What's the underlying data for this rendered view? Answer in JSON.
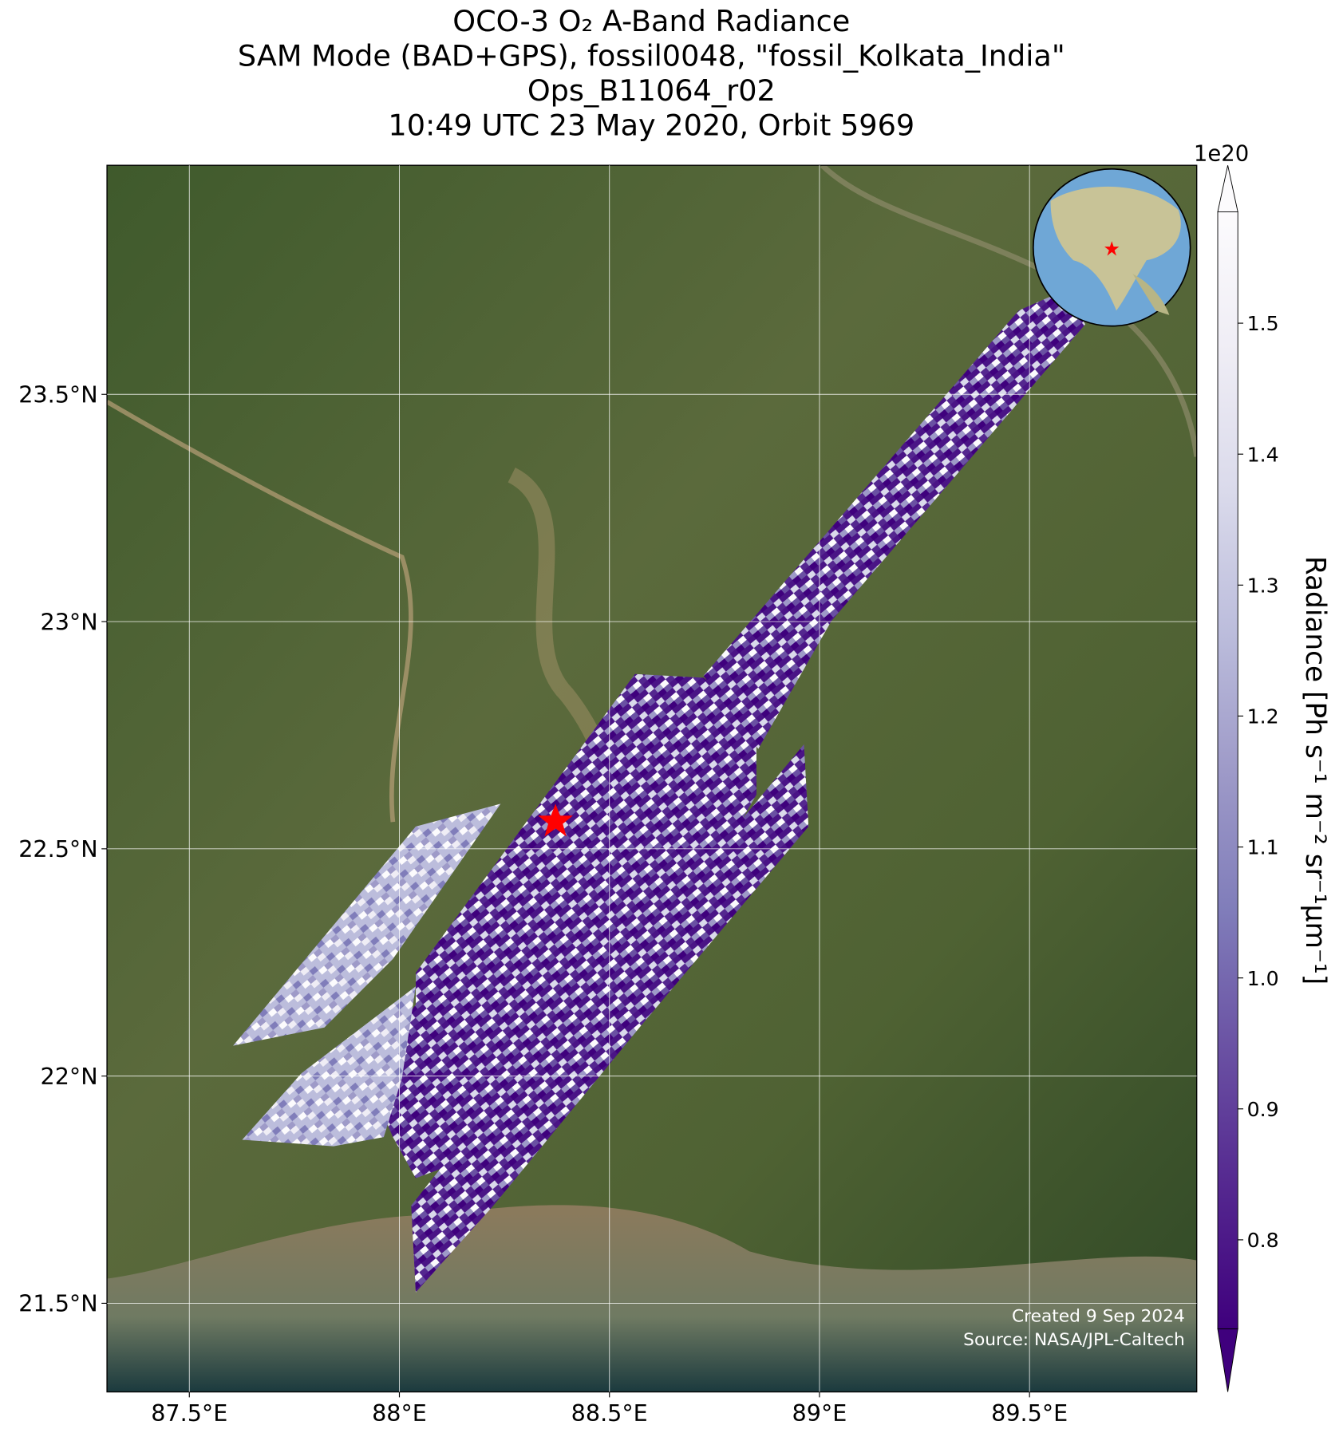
{
  "chart_data": {
    "type": "map",
    "title": [
      "OCO-3 O₂ A-Band Radiance",
      "SAM Mode (BAD+GPS), fossil0048, \"fossil_Kolkata_India\"",
      "Ops_B11064_r02",
      "10:49 UTC 23 May 2020, Orbit 5969"
    ],
    "xlim": [
      87.304,
      89.898
    ],
    "ylim": [
      21.305,
      24.004
    ],
    "xticks": [
      {
        "value": 87.5,
        "label": "87.5°E"
      },
      {
        "value": 88,
        "label": "88°E"
      },
      {
        "value": 88.5,
        "label": "88.5°E"
      },
      {
        "value": 89,
        "label": "89°E"
      },
      {
        "value": 89.5,
        "label": "89.5°E"
      }
    ],
    "yticks": [
      {
        "value": 21.5,
        "label": "21.5°N"
      },
      {
        "value": 22,
        "label": "22°N"
      },
      {
        "value": 22.5,
        "label": "22.5°N"
      },
      {
        "value": 23,
        "label": "23°N"
      },
      {
        "value": 23.5,
        "label": "23.5°N"
      }
    ],
    "grid": true,
    "colorbar": {
      "label": "Radiance [Ph s⁻¹ m⁻² sr⁻¹μm⁻¹]",
      "multiplier": "1e20",
      "clim": [
        0.732,
        1.585
      ],
      "ticks": [
        0.8,
        0.9,
        {
          "value": 1.0,
          "label": "1.0"
        },
        1.1,
        1.2,
        1.3,
        1.4,
        1.5
      ],
      "colors": [
        "#3f007d",
        "#54278f",
        "#6a51a3",
        "#807dba",
        "#9e9ac8",
        "#bcbddc",
        "#dadaeb",
        "#efedf5",
        "#fcfbfd"
      ]
    },
    "credits": [
      "Created 9 Sep 2024",
      "Source: NASA/JPL-Caltech"
    ]
  }
}
